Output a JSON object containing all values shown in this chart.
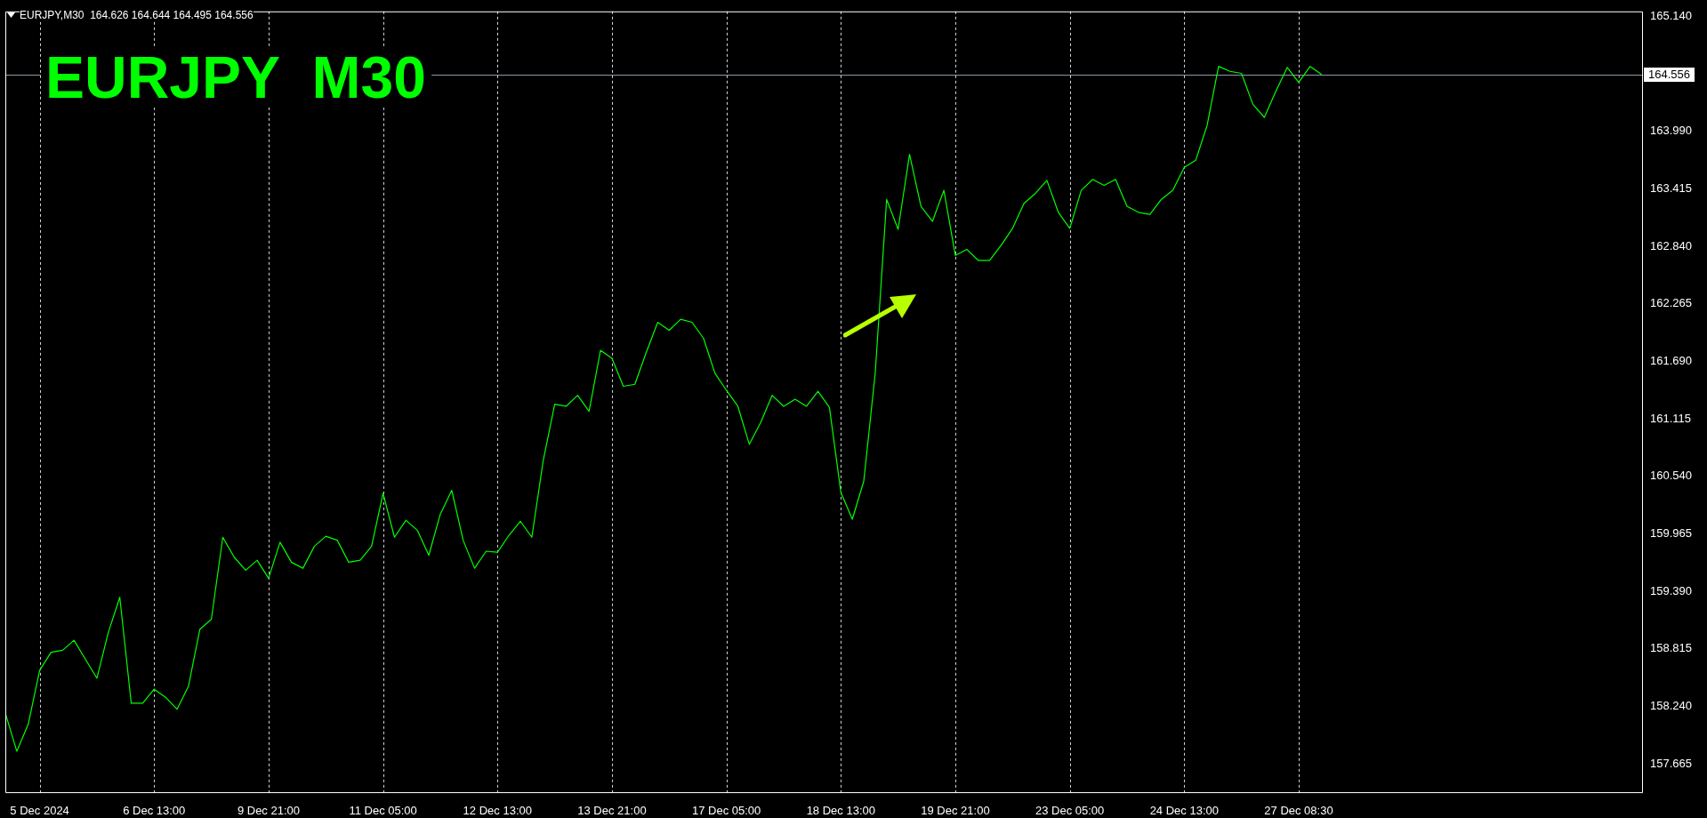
{
  "chart_data": {
    "type": "line",
    "title": "EURJPY  M30",
    "annotations": [
      "EURJPY,M30  164.626 164.644 164.495 164.556"
    ],
    "categories": [
      null,
      null,
      null,
      "5 Dec 2024",
      null,
      null,
      null,
      null,
      null,
      null,
      null,
      null,
      null,
      "6 Dec 13:00",
      null,
      null,
      null,
      null,
      null,
      null,
      null,
      null,
      null,
      "9 Dec 21:00",
      null,
      null,
      null,
      null,
      null,
      null,
      null,
      null,
      null,
      "11 Dec 05:00",
      null,
      null,
      null,
      null,
      null,
      null,
      null,
      null,
      null,
      "12 Dec 13:00",
      null,
      null,
      null,
      null,
      null,
      null,
      null,
      null,
      null,
      "13 Dec 21:00",
      null,
      null,
      null,
      null,
      null,
      null,
      null,
      null,
      null,
      "17 Dec 05:00",
      null,
      null,
      null,
      null,
      null,
      null,
      null,
      null,
      null,
      "18 Dec 13:00",
      null,
      null,
      null,
      null,
      null,
      null,
      null,
      null,
      null,
      "19 Dec 21:00",
      null,
      null,
      null,
      null,
      null,
      null,
      null,
      null,
      null,
      "23 Dec 05:00",
      null,
      null,
      null,
      null,
      null,
      null,
      null,
      null,
      null,
      "24 Dec 13:00",
      null,
      null,
      null,
      null,
      null,
      null,
      null,
      null,
      null,
      "27 Dec 08:30",
      null,
      null,
      null,
      null,
      null,
      null,
      null,
      null,
      null,
      null,
      null,
      null,
      null,
      null,
      null,
      null,
      null,
      null,
      null,
      null,
      null,
      null,
      null,
      null,
      null,
      null,
      null,
      null,
      null,
      null
    ],
    "series": [
      {
        "color": "#00ff00",
        "values": [
          158.17,
          157.79,
          158.06,
          158.6,
          158.78,
          158.8,
          158.9,
          158.71,
          158.52,
          158.98,
          159.33,
          158.27,
          158.27,
          158.41,
          158.33,
          158.21,
          158.44,
          159.01,
          159.11,
          159.93,
          159.73,
          159.6,
          159.7,
          159.52,
          159.88,
          159.68,
          159.62,
          159.84,
          159.94,
          159.9,
          159.68,
          159.7,
          159.84,
          160.37,
          159.93,
          160.1,
          160.0,
          159.75,
          160.16,
          160.4,
          159.9,
          159.62,
          159.79,
          159.78,
          159.95,
          160.09,
          159.93,
          160.7,
          161.26,
          161.24,
          161.35,
          161.19,
          161.8,
          161.72,
          161.44,
          161.46,
          161.78,
          162.08,
          162.0,
          162.11,
          162.08,
          161.92,
          161.57,
          161.4,
          161.24,
          160.86,
          161.08,
          161.35,
          161.24,
          161.31,
          161.24,
          161.39,
          161.23,
          160.38,
          160.11,
          160.49,
          161.57,
          163.31,
          163.01,
          163.76,
          163.24,
          163.09,
          163.4,
          162.75,
          162.81,
          162.7,
          162.7,
          162.85,
          163.02,
          163.27,
          163.37,
          163.5,
          163.18,
          163.02,
          163.4,
          163.51,
          163.45,
          163.51,
          163.24,
          163.18,
          163.16,
          163.31,
          163.4,
          163.63,
          163.7,
          164.05,
          164.64,
          164.59,
          164.57,
          164.26,
          164.13,
          164.39,
          164.63,
          164.48,
          164.64,
          164.56,
          null,
          null,
          null,
          null,
          null,
          null,
          null,
          null,
          null,
          null,
          null,
          null,
          null,
          null,
          null,
          null,
          null,
          null,
          null,
          null,
          null,
          null,
          null,
          null,
          null,
          null,
          null,
          null
        ]
      }
    ],
    "ylim": [
      157.38,
      165.19
    ],
    "yticks": [
      {
        "value": 157.665,
        "label": "157.665"
      },
      {
        "value": 158.24,
        "label": "158.240"
      },
      {
        "value": 158.815,
        "label": "158.815"
      },
      {
        "value": 159.39,
        "label": "159.390"
      },
      {
        "value": 159.965,
        "label": "159.965"
      },
      {
        "value": 160.54,
        "label": "160.540"
      },
      {
        "value": 161.115,
        "label": "161.115"
      },
      {
        "value": 161.69,
        "label": "161.690"
      },
      {
        "value": 162.265,
        "label": "162.265"
      },
      {
        "value": 162.84,
        "label": "162.840"
      },
      {
        "value": 163.415,
        "label": "163.415"
      },
      {
        "value": 163.99,
        "label": "163.990"
      },
      {
        "value": 164.565,
        "label": null
      },
      {
        "value": 165.14,
        "label": "165.140"
      }
    ],
    "ref_lines": [
      {
        "axis": "y",
        "value": 164.556,
        "label": "164.556",
        "color": "#8c9aaa"
      }
    ],
    "grid": "x",
    "legend": false,
    "marker": "none",
    "line_style": "solid"
  }
}
